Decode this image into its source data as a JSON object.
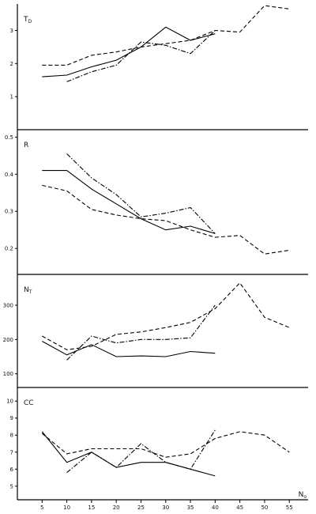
{
  "chart_data": [
    {
      "type": "line",
      "label": "T",
      "label_sub": "D",
      "ylim": [
        0,
        3.8
      ],
      "yticks": [
        "1",
        "2",
        "3"
      ],
      "series": [
        {
          "style": "solid",
          "x": [
            5,
            10,
            15,
            20,
            25,
            30,
            35,
            40
          ],
          "y": [
            1.6,
            1.65,
            1.9,
            2.1,
            2.5,
            3.1,
            2.7,
            2.9
          ]
        },
        {
          "style": "dashed",
          "x": [
            5,
            10,
            15,
            20,
            25,
            30,
            35,
            40,
            45,
            50,
            55
          ],
          "y": [
            1.95,
            1.95,
            2.25,
            2.35,
            2.5,
            2.6,
            2.7,
            3.0,
            2.95,
            3.75,
            3.65
          ]
        },
        {
          "style": "dashdot",
          "x": [
            10,
            15,
            20,
            25,
            30,
            35,
            40
          ],
          "y": [
            1.45,
            1.75,
            1.95,
            2.65,
            2.55,
            2.3,
            3.0
          ]
        }
      ]
    },
    {
      "type": "line",
      "label": "R",
      "label_sub": "",
      "ylim": [
        0.13,
        0.52
      ],
      "yticks": [
        "0.2",
        "0.3",
        "0.4",
        "0.5"
      ],
      "series": [
        {
          "style": "solid",
          "x": [
            5,
            10,
            15,
            20,
            25,
            30,
            35,
            40
          ],
          "y": [
            0.41,
            0.41,
            0.36,
            0.32,
            0.28,
            0.25,
            0.26,
            0.24
          ]
        },
        {
          "style": "dashed",
          "x": [
            5,
            10,
            15,
            20,
            25,
            30,
            35,
            40,
            45,
            50,
            55
          ],
          "y": [
            0.37,
            0.355,
            0.305,
            0.29,
            0.28,
            0.275,
            0.25,
            0.23,
            0.235,
            0.185,
            0.195
          ]
        },
        {
          "style": "dashdot",
          "x": [
            10,
            15,
            20,
            25,
            30,
            35,
            40
          ],
          "y": [
            0.455,
            0.39,
            0.345,
            0.285,
            0.295,
            0.31,
            0.24
          ]
        }
      ]
    },
    {
      "type": "line",
      "label": "N",
      "label_sub": "T",
      "ylim": [
        60,
        390
      ],
      "yticks": [
        "100",
        "200",
        "300"
      ],
      "series": [
        {
          "style": "solid",
          "x": [
            5,
            10,
            15,
            20,
            25,
            30,
            35,
            40
          ],
          "y": [
            195,
            155,
            185,
            150,
            152,
            150,
            165,
            160
          ]
        },
        {
          "style": "dashed",
          "x": [
            5,
            10,
            15,
            20,
            25,
            30,
            35,
            40,
            45,
            50,
            55
          ],
          "y": [
            210,
            170,
            180,
            215,
            222,
            235,
            250,
            290,
            365,
            265,
            235
          ]
        },
        {
          "style": "dashdot",
          "x": [
            10,
            15,
            20,
            25,
            30,
            35,
            40
          ],
          "y": [
            140,
            210,
            190,
            200,
            200,
            205,
            300
          ]
        }
      ]
    },
    {
      "type": "line",
      "label": "CC",
      "label_sub": "",
      "ylim": [
        4.2,
        10.8
      ],
      "yticks": [
        "5",
        "6",
        "7",
        "8",
        "9",
        "10"
      ],
      "xlabel": "N",
      "xlabel_sub": "o",
      "xticks": [
        "5",
        "10",
        "15",
        "20",
        "25",
        "30",
        "35",
        "40",
        "45",
        "50",
        "55"
      ],
      "series": [
        {
          "style": "solid",
          "x": [
            5,
            10,
            15,
            20,
            25,
            30,
            35,
            40
          ],
          "y": [
            8.2,
            6.4,
            7.0,
            6.1,
            6.4,
            6.4,
            6.0,
            5.6
          ]
        },
        {
          "style": "dashed",
          "x": [
            5,
            10,
            15,
            20,
            25,
            30,
            35,
            40,
            45,
            50,
            55
          ],
          "y": [
            8.1,
            6.9,
            7.2,
            7.2,
            7.2,
            6.7,
            6.9,
            7.8,
            8.2,
            8.0,
            7.0
          ]
        },
        {
          "style": "dashdot",
          "x": [
            10,
            15,
            20,
            25,
            30,
            35,
            40
          ],
          "y": [
            5.8,
            7.0,
            6.1,
            7.5,
            6.4,
            6.0,
            8.3
          ]
        }
      ]
    }
  ]
}
